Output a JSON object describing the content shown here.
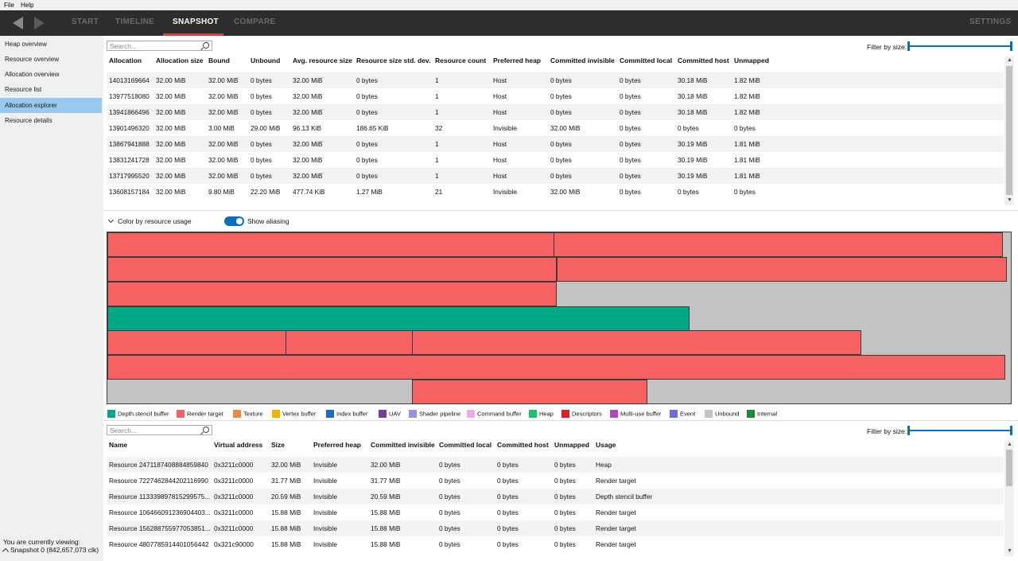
{
  "menu": {
    "file": "File",
    "help": "Help"
  },
  "nav": {
    "tabs": [
      {
        "label": "START"
      },
      {
        "label": "TIMELINE"
      },
      {
        "label": "SNAPSHOT"
      },
      {
        "label": "COMPARE"
      }
    ],
    "settings": "SETTINGS",
    "accent": "#d0414e"
  },
  "sidebar": {
    "items": [
      {
        "label": "Heap overview"
      },
      {
        "label": "Resource overview"
      },
      {
        "label": "Allocation overview"
      },
      {
        "label": "Resource list"
      },
      {
        "label": "Allocation explorer"
      },
      {
        "label": "Resource details"
      }
    ],
    "active_index": 4,
    "viewing_label": "You are currently viewing:",
    "snapshot_label": "Snapshot 0 (842,657,073 clk)"
  },
  "top_panel": {
    "search_placeholder": "Search...",
    "filter_label": "Filter by size:",
    "columns": [
      "Allocation",
      "Allocation size",
      "Bound",
      "Unbound",
      "Avg. resource size",
      "Resource size std. dev.",
      "Resource count",
      "Preferred heap",
      "Committed invisible",
      "Committed local",
      "Committed host",
      "Unmapped"
    ],
    "rows": [
      [
        "14013169664",
        "32.00 MiB",
        "32.00 MiB",
        "0 bytes",
        "32.00 MiB",
        "0 bytes",
        "1",
        "Host",
        "0 bytes",
        "0 bytes",
        "30.18 MiB",
        "1.82 MiB"
      ],
      [
        "13977518080",
        "32.00 MiB",
        "32.00 MiB",
        "0 bytes",
        "32.00 MiB",
        "0 bytes",
        "1",
        "Host",
        "0 bytes",
        "0 bytes",
        "30.18 MiB",
        "1.82 MiB"
      ],
      [
        "13941866496",
        "32.00 MiB",
        "32.00 MiB",
        "0 bytes",
        "32.00 MiB",
        "0 bytes",
        "1",
        "Host",
        "0 bytes",
        "0 bytes",
        "30.18 MiB",
        "1.82 MiB"
      ],
      [
        "13901496320",
        "32.00 MiB",
        "3.00 MiB",
        "29.00 MiB",
        "96.13 KiB",
        "186.65 KiB",
        "32",
        "Invisible",
        "32.00 MiB",
        "0 bytes",
        "0 bytes",
        "0 bytes"
      ],
      [
        "13867941888",
        "32.00 MiB",
        "32.00 MiB",
        "0 bytes",
        "32.00 MiB",
        "0 bytes",
        "1",
        "Host",
        "0 bytes",
        "0 bytes",
        "30.19 MiB",
        "1.81 MiB"
      ],
      [
        "13831241728",
        "32.00 MiB",
        "32.00 MiB",
        "0 bytes",
        "32.00 MiB",
        "0 bytes",
        "1",
        "Host",
        "0 bytes",
        "0 bytes",
        "30.19 MiB",
        "1.81 MiB"
      ],
      [
        "13717995520",
        "32.00 MiB",
        "32.00 MiB",
        "0 bytes",
        "32.00 MiB",
        "0 bytes",
        "1",
        "Host",
        "0 bytes",
        "0 bytes",
        "30.19 MiB",
        "1.81 MiB"
      ],
      [
        "13608157184",
        "32.00 MiB",
        "9.80 MiB",
        "22.20 MiB",
        "477.74 KiB",
        "1.27 MiB",
        "21",
        "Invisible",
        "32.00 MiB",
        "0 bytes",
        "0 bytes",
        "0 bytes"
      ]
    ]
  },
  "visualization": {
    "color_label": "Color by resource usage",
    "aliasing_label": "Show aliasing",
    "aliasing_on": true,
    "legend": [
      {
        "label": "Depth stencil buffer",
        "color": "#00a885"
      },
      {
        "label": "Render target",
        "color": "#f86262"
      },
      {
        "label": "Texture",
        "color": "#e88a43"
      },
      {
        "label": "Vertex buffer",
        "color": "#f5b400"
      },
      {
        "label": "Index buffer",
        "color": "#1b6dc4"
      },
      {
        "label": "UAV",
        "color": "#7040a0"
      },
      {
        "label": "Shader pipeline",
        "color": "#9f8fd8"
      },
      {
        "label": "Command buffer",
        "color": "#f5a8e4"
      },
      {
        "label": "Heap",
        "color": "#14c46e"
      },
      {
        "label": "Descriptors",
        "color": "#d9202a"
      },
      {
        "label": "Multi-use buffer",
        "color": "#b045c8"
      },
      {
        "label": "Event",
        "color": "#6a6ad8"
      },
      {
        "label": "Unbound",
        "color": "#c3c3c3"
      },
      {
        "label": "Internal",
        "color": "#1a8a3e"
      }
    ]
  },
  "bottom_panel": {
    "search_placeholder": "Search...",
    "filter_label": "Filter by size:",
    "columns": [
      "Name",
      "Virtual address",
      "Size",
      "Preferred heap",
      "Committed invisible",
      "Committed local",
      "Committed host",
      "Unmapped",
      "Usage"
    ],
    "rows": [
      [
        "Resource 2471187408884859840",
        "0x3211c0000",
        "32.00 MiB",
        "Invisible",
        "32.00 MiB",
        "0 bytes",
        "0 bytes",
        "0 bytes",
        "Heap"
      ],
      [
        "Resource 7227462844202116990",
        "0x3211c0000",
        "31.77 MiB",
        "Invisible",
        "31.77 MiB",
        "0 bytes",
        "0 bytes",
        "0 bytes",
        "Render target"
      ],
      [
        "Resource 113339897815299575...",
        "0x3211c0000",
        "20.59 MiB",
        "Invisible",
        "20.59 MiB",
        "0 bytes",
        "0 bytes",
        "0 bytes",
        "Depth stencil buffer"
      ],
      [
        "Resource 106466091236904403...",
        "0x3211c0000",
        "15.88 MiB",
        "Invisible",
        "15.88 MiB",
        "0 bytes",
        "0 bytes",
        "0 bytes",
        "Render target"
      ],
      [
        "Resource 156288755977053851...",
        "0x3211c0000",
        "15.88 MiB",
        "Invisible",
        "15.88 MiB",
        "0 bytes",
        "0 bytes",
        "0 bytes",
        "Render target"
      ],
      [
        "Resource 4807785914401056442",
        "0x321c90000",
        "15.88 MiB",
        "Invisible",
        "15.88 MiB",
        "0 bytes",
        "0 bytes",
        "0 bytes",
        "Render target"
      ]
    ]
  }
}
